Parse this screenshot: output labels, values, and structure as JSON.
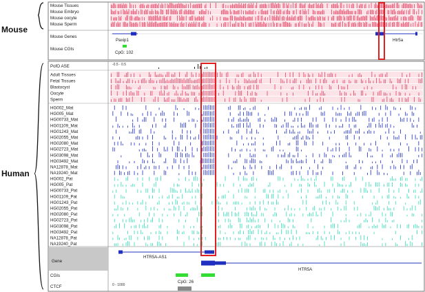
{
  "groups": {
    "mouse": "Mouse",
    "human": "Human"
  },
  "mouse": {
    "tracks": [
      "Mouse Tissues",
      "Mouse Embryo",
      "Mouse oocyte",
      "Mouse Sperm"
    ],
    "genes_label": "Mouse Genes",
    "cgis_label": "Mouse CGIs",
    "gene_left": "Paxip1",
    "gene_right": "Htr5a",
    "cgi": "CpG: 102"
  },
  "human": {
    "pofo_label": "PofO ASE",
    "pofo_range": "-0.5 - 0.5",
    "tissue_tracks": [
      "Adult Tissues",
      "Fetal Tissues",
      "Blastocyst",
      "Oocyte",
      "Sperm"
    ],
    "mat_tracks": [
      "HG002_Mat",
      "HG005_Mat",
      "HG00733_Mat",
      "HG01109_Mat",
      "HG01243_Mat",
      "HG02055_Mat",
      "HG02080_Mat",
      "HG02723_Mat",
      "HG03098_Mat",
      "HG03492_Mat",
      "NA12878_Mat",
      "NA19240_Mat"
    ],
    "pat_tracks": [
      "HG002_Pat",
      "HG005_Pat",
      "HG00733_Pat",
      "HG01109_Pat",
      "HG01243_Pat",
      "HG02055_Pat",
      "HG02080_Pat",
      "HG02723_Pat",
      "HG03098_Pat",
      "HG03492_Pat",
      "NA12878_Pat",
      "NA19240_Pat"
    ],
    "gene_label": "Gene",
    "cgis_label": "CGIs",
    "ctcf_label": "CTCF",
    "ctcf_range": "0 - 1000",
    "gene_as1": "HTR5A-AS1",
    "gene_main": "HTR5A",
    "cgi": "CpG: 26"
  },
  "colors": {
    "methylation": "#e8506e",
    "methylation_bg": "#fbe3e8",
    "maternal": "#2f3fd0",
    "paternal": "#3fe0b8",
    "gene": "#1f2fbf",
    "cgi": "#33dd33",
    "highlight": "#e02020"
  }
}
